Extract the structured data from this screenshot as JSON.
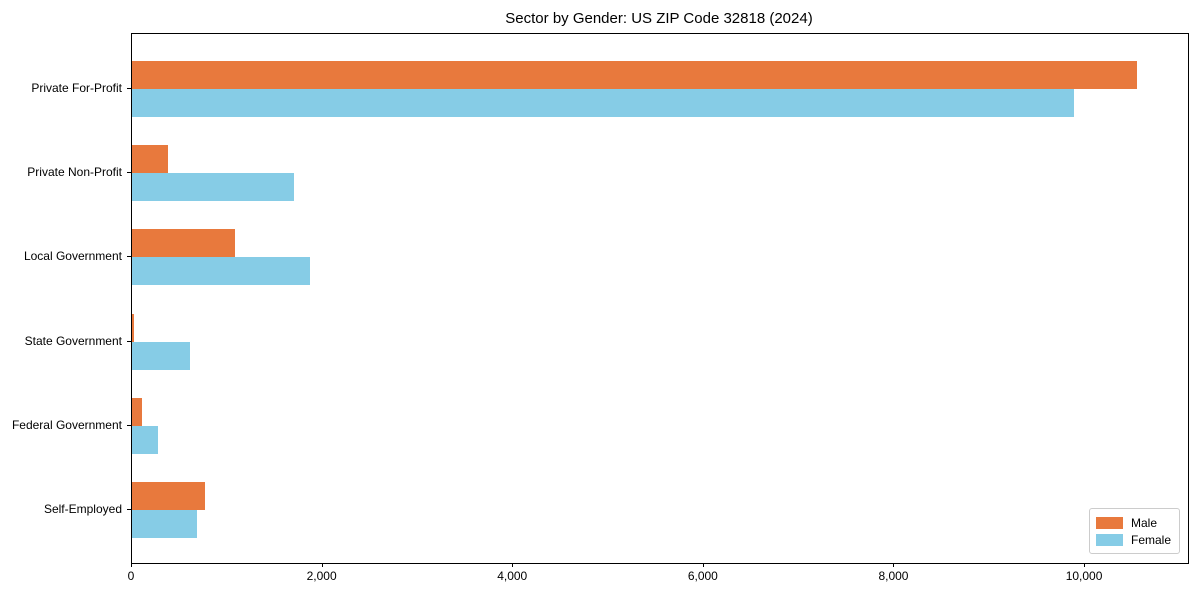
{
  "chart_data": {
    "type": "bar",
    "orientation": "horizontal",
    "title": "Sector by Gender: US ZIP Code 32818 (2024)",
    "categories": [
      "Private For-Profit",
      "Private Non-Profit",
      "Local Government",
      "State Government",
      "Federal Government",
      "Self-Employed"
    ],
    "series": [
      {
        "name": "Male",
        "color": "#e8793d",
        "values": [
          10550,
          380,
          1080,
          25,
          100,
          770
        ]
      },
      {
        "name": "Female",
        "color": "#86cce6",
        "values": [
          9880,
          1700,
          1870,
          610,
          275,
          680
        ]
      }
    ],
    "xlabel": "",
    "ylabel": "",
    "xlim": [
      0,
      11080
    ],
    "xticks": [
      0,
      2000,
      4000,
      6000,
      8000,
      10000
    ],
    "xtick_labels": [
      "0",
      "2,000",
      "4,000",
      "6,000",
      "8,000",
      "10,000"
    ],
    "legend_position": "lower right",
    "grid": false
  }
}
